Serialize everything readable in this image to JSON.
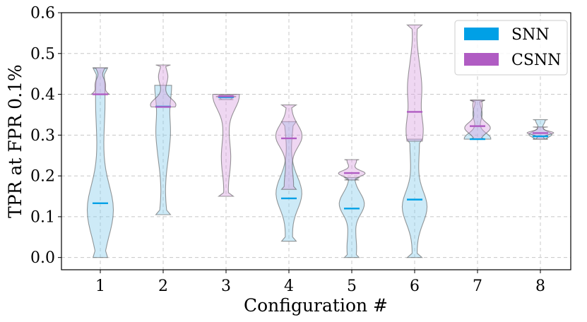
{
  "chart_data": {
    "type": "violin",
    "xlabel": "Configuration #",
    "ylabel": "TPR at FPR 0.1%",
    "categories": [
      "1",
      "2",
      "3",
      "4",
      "5",
      "6",
      "7",
      "8"
    ],
    "ylim": [
      -0.03,
      0.6
    ],
    "yticks": [
      "0.0",
      "0.1",
      "0.2",
      "0.3",
      "0.4",
      "0.5",
      "0.6"
    ],
    "ytick_values": [
      0.0,
      0.1,
      0.2,
      0.3,
      0.4,
      0.5,
      0.6
    ],
    "grid": true,
    "legend_position": "top-right",
    "series": [
      {
        "name": "SNN",
        "color": "#00a0e6",
        "violins": [
          {
            "min": 0.0,
            "max": 0.465,
            "median": 0.133
          },
          {
            "min": 0.105,
            "max": 0.422,
            "median": 0.37
          },
          {
            "min": 0.387,
            "max": 0.398,
            "median": 0.393
          },
          {
            "min": 0.04,
            "max": 0.333,
            "median": 0.145
          },
          {
            "min": 0.0,
            "max": 0.196,
            "median": 0.12
          },
          {
            "min": 0.0,
            "max": 0.29,
            "median": 0.142
          },
          {
            "min": 0.29,
            "max": 0.385,
            "median": 0.29
          },
          {
            "min": 0.29,
            "max": 0.338,
            "median": 0.297
          }
        ]
      },
      {
        "name": "CSNN",
        "color": "#b05cc3",
        "violins": [
          {
            "min": 0.4,
            "max": 0.465,
            "median": 0.4
          },
          {
            "min": 0.369,
            "max": 0.472,
            "median": 0.369
          },
          {
            "min": 0.15,
            "max": 0.4,
            "median": 0.395
          },
          {
            "min": 0.167,
            "max": 0.374,
            "median": 0.292
          },
          {
            "min": 0.19,
            "max": 0.24,
            "median": 0.207
          },
          {
            "min": 0.285,
            "max": 0.57,
            "median": 0.357
          },
          {
            "min": 0.29,
            "max": 0.386,
            "median": 0.322
          },
          {
            "min": 0.29,
            "max": 0.32,
            "median": 0.305
          }
        ]
      }
    ]
  }
}
